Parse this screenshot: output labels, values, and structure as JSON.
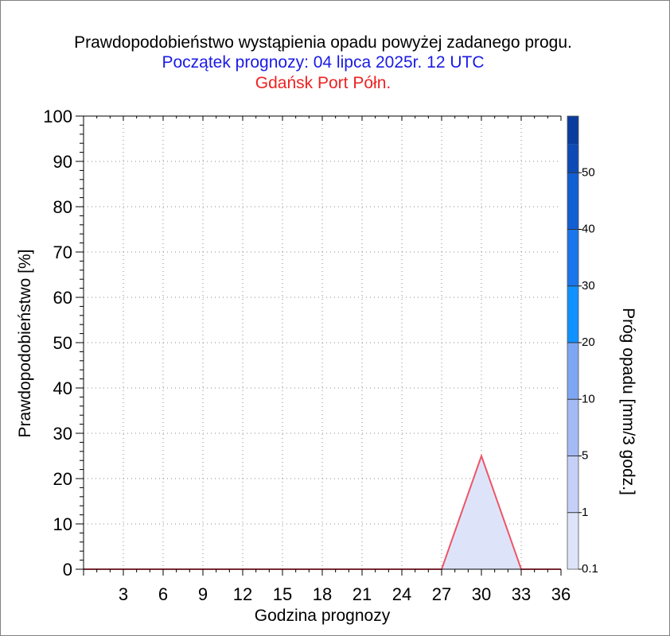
{
  "title": "Prawdopodobieństwo wystąpienia opadu powyżej zadanego progu.",
  "subtitle": "Początek prognozy: 04 lipca 2025r. 12 UTC",
  "location": "Gdańsk Port Półn.",
  "colors": {
    "title": "#000000",
    "subtitle": "#1a1ae6",
    "location": "#ee2222",
    "series_line": "#ee5566",
    "series_fill": "#dde4fa"
  },
  "chart_data": {
    "type": "area",
    "title": "Prawdopodobieństwo wystąpienia opadu powyżej zadanego progu.",
    "xlabel": "Godzina prognozy",
    "ylabel": "Prawdopodobieństwo [%]",
    "xlim": [
      0,
      36
    ],
    "ylim": [
      0,
      100
    ],
    "x_ticks": [
      3,
      6,
      9,
      12,
      15,
      18,
      21,
      24,
      27,
      30,
      33,
      36
    ],
    "y_ticks": [
      0,
      10,
      20,
      30,
      40,
      50,
      60,
      70,
      80,
      90,
      100
    ],
    "grid": true,
    "series": [
      {
        "threshold": "0.1",
        "x": [
          0,
          3,
          6,
          9,
          12,
          15,
          18,
          21,
          24,
          27,
          30,
          33,
          36
        ],
        "values": [
          0,
          0,
          0,
          0,
          0,
          0,
          0,
          0,
          0,
          0,
          25,
          0,
          0
        ]
      }
    ],
    "colorbar": {
      "label": "Próg opadu [mm/3 godz.]",
      "tick_labels": [
        "0.1",
        "1",
        "5",
        "10",
        "20",
        "30",
        "40",
        "50"
      ],
      "colors": [
        "#dde4fa",
        "#c4d0f8",
        "#a4baf5",
        "#7fa6f2",
        "#0f92ff",
        "#1a76ea",
        "#125ed3",
        "#0d4ab4",
        "#0a3c9e"
      ]
    }
  }
}
